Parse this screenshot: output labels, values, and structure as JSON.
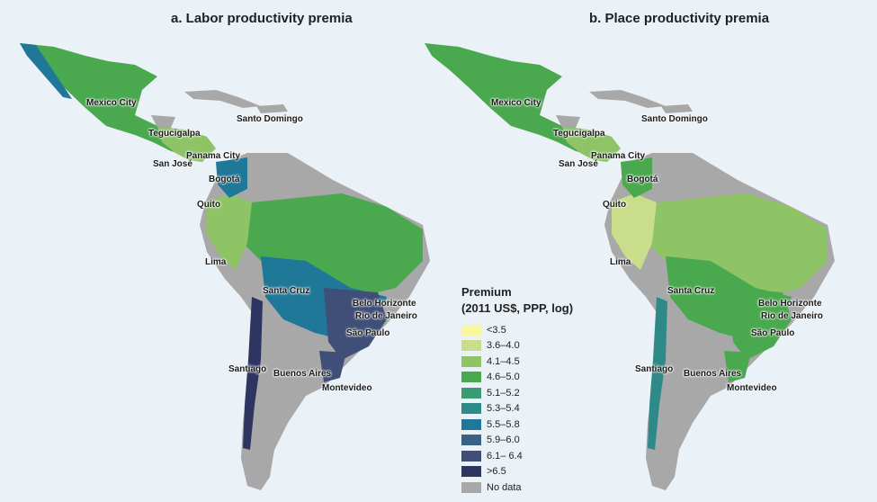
{
  "panels": [
    {
      "title": "a. Labor productivity premia"
    },
    {
      "title": "b. Place productivity premia"
    }
  ],
  "cities": [
    "Mexico City",
    "Santo Domingo",
    "Tegucigalpa",
    "Panama City",
    "San José",
    "Bogotá",
    "Quito",
    "Lima",
    "Santa Cruz",
    "Belo Horizonte",
    "Rio de Janeiro",
    "São Paulo",
    "Santiago",
    "Buenos Aires",
    "Montevideo"
  ],
  "legend": {
    "title_line1": "Premium",
    "title_line2": "(2011 US$, PPP, log)",
    "items": [
      {
        "label": "<3.5",
        "color": "#fbf5a0"
      },
      {
        "label": "3.6–4.0",
        "color": "#c9dd8a"
      },
      {
        "label": "4.1–4.5",
        "color": "#8ec466"
      },
      {
        "label": "4.6–5.0",
        "color": "#4aa84e"
      },
      {
        "label": "5.1–5.2",
        "color": "#3a9a72"
      },
      {
        "label": "5.3–5.4",
        "color": "#2e8a88"
      },
      {
        "label": "5.5–5.8",
        "color": "#1f7898"
      },
      {
        "label": "5.9–6.0",
        "color": "#3a6285"
      },
      {
        "label": "6.1– 6.4",
        "color": "#3f4f78"
      },
      {
        "label": ">6.5",
        "color": "#2e3561"
      },
      {
        "label": "No data",
        "color": "#a8a8a8"
      }
    ]
  }
}
